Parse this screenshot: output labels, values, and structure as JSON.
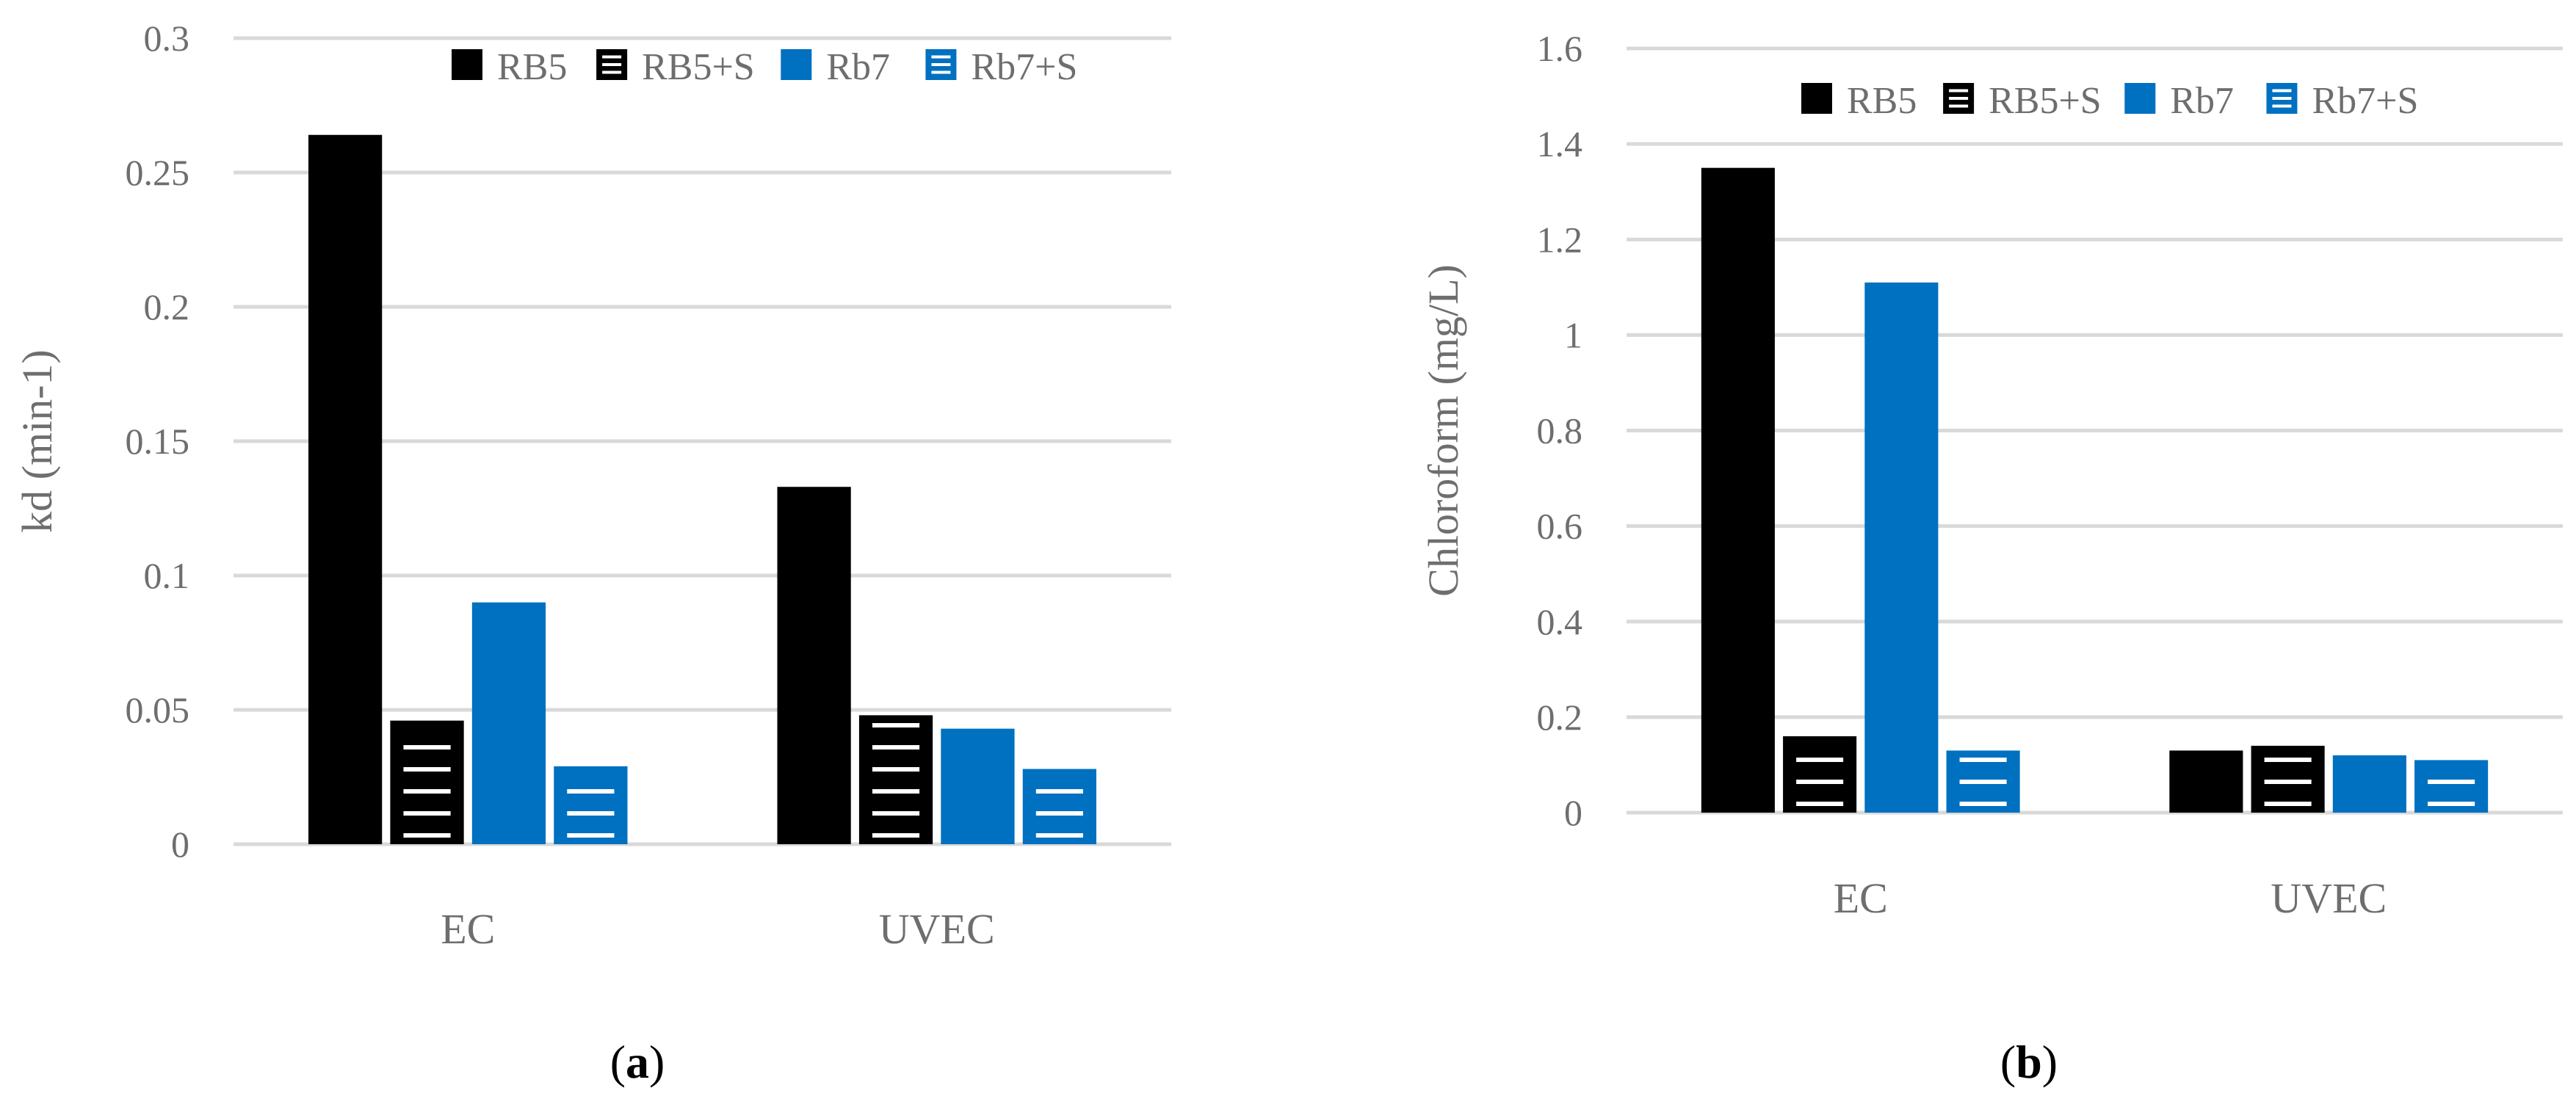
{
  "colors": {
    "black": "#000000",
    "blue": "#0070c0",
    "grid": "#d9d9d9",
    "text": "#6e6e6e",
    "hatch": "#ffffff"
  },
  "chart_data": [
    {
      "type": "bar",
      "caption": {
        "open": "(",
        "letter": "a",
        "close": ")"
      },
      "categories": [
        "EC",
        "UVEC"
      ],
      "ylabel": "kd (min-1)",
      "xlabel": "",
      "ylim": [
        0,
        0.3
      ],
      "yticks": [
        "0",
        "0.05",
        "0.1",
        "0.15",
        "0.2",
        "0.25",
        "0.3"
      ],
      "legend_position": "top-right",
      "grid": true,
      "series": [
        {
          "name": "RB5",
          "color": "#000000",
          "pattern": "solid",
          "values": [
            0.264,
            0.133
          ]
        },
        {
          "name": "RB5+S",
          "color": "#000000",
          "pattern": "hlines",
          "values": [
            0.046,
            0.048
          ]
        },
        {
          "name": "Rb7",
          "color": "#0070c0",
          "pattern": "solid",
          "values": [
            0.09,
            0.043
          ]
        },
        {
          "name": "Rb7+S",
          "color": "#0070c0",
          "pattern": "hlines",
          "values": [
            0.029,
            0.028
          ]
        }
      ]
    },
    {
      "type": "bar",
      "caption": {
        "open": "(",
        "letter": "b",
        "close": ")"
      },
      "categories": [
        "EC",
        "UVEC"
      ],
      "ylabel": "Chloroform (mg/L)",
      "xlabel": "",
      "ylim": [
        0,
        1.6
      ],
      "yticks": [
        "0",
        "0.2",
        "0.4",
        "0.6",
        "0.8",
        "1",
        "1.2",
        "1.4",
        "1.6"
      ],
      "legend_position": "top-right",
      "grid": true,
      "series": [
        {
          "name": "RB5",
          "color": "#000000",
          "pattern": "solid",
          "values": [
            1.35,
            0.13
          ]
        },
        {
          "name": "RB5+S",
          "color": "#000000",
          "pattern": "hlines",
          "values": [
            0.16,
            0.14
          ]
        },
        {
          "name": "Rb7",
          "color": "#0070c0",
          "pattern": "solid",
          "values": [
            1.11,
            0.12
          ]
        },
        {
          "name": "Rb7+S",
          "color": "#0070c0",
          "pattern": "hlines",
          "values": [
            0.13,
            0.11
          ]
        }
      ]
    }
  ]
}
